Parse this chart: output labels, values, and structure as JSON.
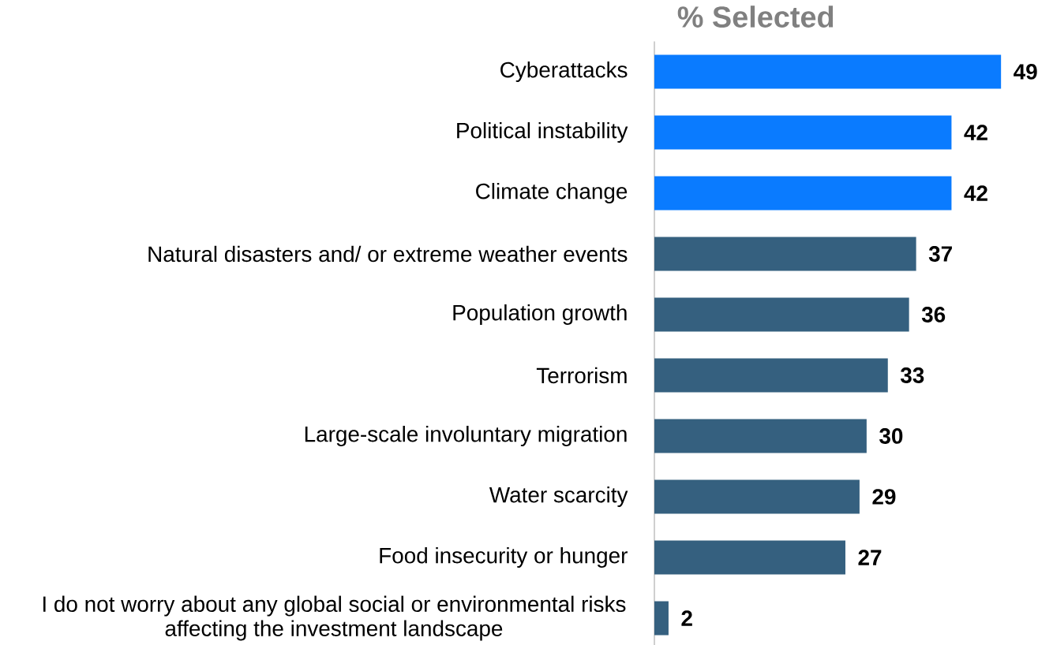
{
  "chart_data": {
    "type": "bar",
    "orientation": "horizontal",
    "title": "% Selected",
    "categories": [
      "Cyberattacks",
      "Political instability",
      "Climate change",
      "Natural disasters and/ or extreme weather events",
      "Population growth",
      "Terrorism",
      "Large-scale involuntary migration",
      "Water scarcity",
      "Food insecurity or hunger",
      "I do not worry about any global social or environmental risks affecting the investment landscape"
    ],
    "values": [
      49,
      42,
      42,
      37,
      36,
      33,
      30,
      29,
      27,
      2
    ],
    "colors": [
      "#0a7bff",
      "#0a7bff",
      "#0a7bff",
      "#35607f",
      "#35607f",
      "#35607f",
      "#35607f",
      "#35607f",
      "#35607f",
      "#35607f"
    ],
    "data_labels": true
  }
}
